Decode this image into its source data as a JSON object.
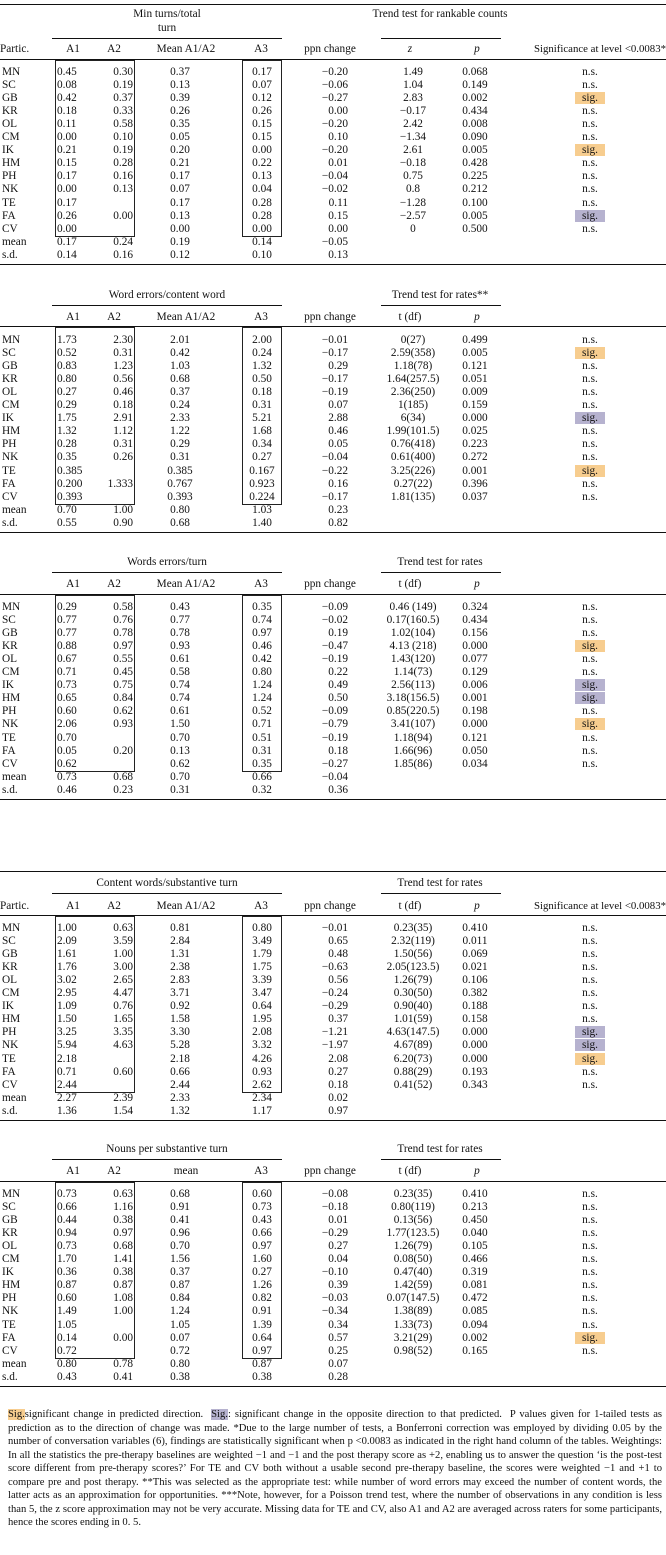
{
  "tables": [
    {
      "group_title_1": "Min turns/total",
      "group_title_2": "turn",
      "trend_title": "Trend test for rankable counts",
      "show_partic": true,
      "show_sig_header": true,
      "col_headers": {
        "partic": "Partic.",
        "a1": "A1",
        "a2": "A2",
        "mean": "Mean A1/A2",
        "a3": "A3",
        "ppn": "ppn change",
        "stat": "z",
        "p": "p",
        "sig": "Significance at level <0.0083*"
      },
      "rows": [
        [
          "MN",
          "0.45",
          "0.30",
          "0.37",
          "0.17",
          "−0.20",
          "1.49",
          "0.068",
          "n.s.",
          ""
        ],
        [
          "SC",
          "0.08",
          "0.19",
          "0.13",
          "0.07",
          "−0.06",
          "1.04",
          "0.149",
          "n.s.",
          ""
        ],
        [
          "GB",
          "0.42",
          "0.37",
          "0.39",
          "0.12",
          "−0.27",
          "2.83",
          "0.002",
          "sig.",
          "o"
        ],
        [
          "KR",
          "0.18",
          "0.33",
          "0.26",
          "0.26",
          "0.00",
          "−0.17",
          "0.434",
          "n.s.",
          ""
        ],
        [
          "OL",
          "0.11",
          "0.58",
          "0.35",
          "0.15",
          "−0.20",
          "2.42",
          "0.008",
          "n.s.",
          ""
        ],
        [
          "CM",
          "0.00",
          "0.10",
          "0.05",
          "0.15",
          "0.10",
          "−1.34",
          "0.090",
          "n.s.",
          ""
        ],
        [
          "IK",
          "0.21",
          "0.19",
          "0.20",
          "0.00",
          "−0.20",
          "2.61",
          "0.005",
          "sig.",
          "o"
        ],
        [
          "HM",
          "0.15",
          "0.28",
          "0.21",
          "0.22",
          "0.01",
          "−0.18",
          "0.428",
          "n.s.",
          ""
        ],
        [
          "PH",
          "0.17",
          "0.16",
          "0.17",
          "0.13",
          "−0.04",
          "0.75",
          "0.225",
          "n.s.",
          ""
        ],
        [
          "NK",
          "0.00",
          "0.13",
          "0.07",
          "0.04",
          "−0.02",
          "0.8",
          "0.212",
          "n.s.",
          ""
        ],
        [
          "TE",
          "0.17",
          "",
          "0.17",
          "0.28",
          "0.11",
          "−1.28",
          "0.100",
          "n.s.",
          ""
        ],
        [
          "FA",
          "0.26",
          "0.00",
          "0.13",
          "0.28",
          "0.15",
          "−2.57",
          "0.005",
          "sig.",
          "p"
        ],
        [
          "CV",
          "0.00",
          "",
          "0.00",
          "0.00",
          "0.00",
          "0",
          "0.500",
          "n.s.",
          ""
        ],
        [
          "mean",
          "0.17",
          "0.24",
          "0.19",
          "0.14",
          "−0.05",
          "",
          "",
          "",
          ""
        ],
        [
          "s.d.",
          "0.14",
          "0.16",
          "0.12",
          "0.10",
          "0.13",
          "",
          "",
          "",
          ""
        ]
      ]
    },
    {
      "group_title_1": "Word errors/content word",
      "group_title_2": "",
      "trend_title": "Trend test for rates**",
      "show_partic": false,
      "show_sig_header": false,
      "col_headers": {
        "partic": "",
        "a1": "A1",
        "a2": "A2",
        "mean": "Mean A1/A2",
        "a3": "A3",
        "ppn": "ppn change",
        "stat": "t (df)",
        "p": "p",
        "sig": ""
      },
      "rows": [
        [
          "MN",
          "1.73",
          "2.30",
          "2.01",
          "2.00",
          "−0.01",
          "0(27)",
          "0.499",
          "n.s.",
          ""
        ],
        [
          "SC",
          "0.52",
          "0.31",
          "0.42",
          "0.24",
          "−0.17",
          "2.59(358)",
          "0.005",
          "sig.",
          "o"
        ],
        [
          "GB",
          "0.83",
          "1.23",
          "1.03",
          "1.32",
          "0.29",
          "1.18(78)",
          "0.121",
          "n.s.",
          ""
        ],
        [
          "KR",
          "0.80",
          "0.56",
          "0.68",
          "0.50",
          "−0.17",
          "1.64(257.5)",
          "0.051",
          "n.s.",
          ""
        ],
        [
          "OL",
          "0.27",
          "0.46",
          "0.37",
          "0.18",
          "−0.19",
          "2.36(250)",
          "0.009",
          "n.s.",
          ""
        ],
        [
          "CM",
          "0.29",
          "0.18",
          "0.24",
          "0.31",
          "0.07",
          "1(185)",
          "0.159",
          "n.s.",
          ""
        ],
        [
          "IK",
          "1.75",
          "2.91",
          "2.33",
          "5.21",
          "2.88",
          "6(34)",
          "0.000",
          "sig.",
          "p"
        ],
        [
          "HM",
          "1.32",
          "1.12",
          "1.22",
          "1.68",
          "0.46",
          "1.99(101.5)",
          "0.025",
          "n.s.",
          ""
        ],
        [
          "PH",
          "0.28",
          "0.31",
          "0.29",
          "0.34",
          "0.05",
          "0.76(418)",
          "0.223",
          "n.s.",
          ""
        ],
        [
          "NK",
          "0.35",
          "0.26",
          "0.31",
          "0.27",
          "−0.04",
          "0.61(400)",
          "0.272",
          "n.s.",
          ""
        ],
        [
          "TE",
          "0.385",
          "",
          "0.385",
          "0.167",
          "−0.22",
          "3.25(226)",
          "0.001",
          "sig.",
          "o"
        ],
        [
          "FA",
          "0.200",
          "1.333",
          "0.767",
          "0.923",
          "0.16",
          "0.27(22)",
          "0.396",
          "n.s.",
          ""
        ],
        [
          "CV",
          "0.393",
          "",
          "0.393",
          "0.224",
          "−0.17",
          "1.81(135)",
          "0.037",
          "n.s.",
          ""
        ],
        [
          "mean",
          "0.70",
          "1.00",
          "0.80",
          "1.03",
          "0.23",
          "",
          "",
          "",
          ""
        ],
        [
          "s.d.",
          "0.55",
          "0.90",
          "0.68",
          "1.40",
          "0.82",
          "",
          "",
          "",
          ""
        ]
      ]
    },
    {
      "group_title_1": "Words errors/turn",
      "group_title_2": "",
      "trend_title": "Trend test for rates",
      "show_partic": false,
      "show_sig_header": false,
      "col_headers": {
        "partic": "",
        "a1": "A1",
        "a2": "A2",
        "mean": "Mean A1/A2",
        "a3": "A3",
        "ppn": "ppn change",
        "stat": "t (df)",
        "p": "p",
        "sig": ""
      },
      "rows": [
        [
          "MN",
          "0.29",
          "0.58",
          "0.43",
          "0.35",
          "−0.09",
          "0.46 (149)",
          "0.324",
          "n.s.",
          ""
        ],
        [
          "SC",
          "0.77",
          "0.76",
          "0.77",
          "0.74",
          "−0.02",
          "0.17(160.5)",
          "0.434",
          "n.s.",
          ""
        ],
        [
          "GB",
          "0.77",
          "0.78",
          "0.78",
          "0.97",
          "0.19",
          "1.02(104)",
          "0.156",
          "n.s.",
          ""
        ],
        [
          "KR",
          "0.88",
          "0.97",
          "0.93",
          "0.46",
          "−0.47",
          "4.13 (218)",
          "0.000",
          "sig.",
          "o"
        ],
        [
          "OL",
          "0.67",
          "0.55",
          "0.61",
          "0.42",
          "−0.19",
          "1.43(120)",
          "0.077",
          "n.s.",
          ""
        ],
        [
          "CM",
          "0.71",
          "0.45",
          "0.58",
          "0.80",
          "0.22",
          "1.14(73)",
          "0.129",
          "n.s.",
          ""
        ],
        [
          "IK",
          "0.73",
          "0.75",
          "0.74",
          "1.24",
          "0.49",
          "2.56(113)",
          "0.006",
          "sig.",
          "p"
        ],
        [
          "HM",
          "0.65",
          "0.84",
          "0.74",
          "1.24",
          "0.50",
          "3.18(156.5)",
          "0.001",
          "sig.",
          "p"
        ],
        [
          "PH",
          "0.60",
          "0.62",
          "0.61",
          "0.52",
          "−0.09",
          "0.85(220.5)",
          "0.198",
          "n.s.",
          ""
        ],
        [
          "NK",
          "2.06",
          "0.93",
          "1.50",
          "0.71",
          "−0.79",
          "3.41(107)",
          "0.000",
          "sig.",
          "o"
        ],
        [
          "TE",
          "0.70",
          "",
          "0.70",
          "0.51",
          "−0.19",
          "1.18(94)",
          "0.121",
          "n.s.",
          ""
        ],
        [
          "FA",
          "0.05",
          "0.20",
          "0.13",
          "0.31",
          "0.18",
          "1.66(96)",
          "0.050",
          "n.s.",
          ""
        ],
        [
          "CV",
          "0.62",
          "",
          "0.62",
          "0.35",
          "−0.27",
          "1.85(86)",
          "0.034",
          "n.s.",
          ""
        ],
        [
          "mean",
          "0.73",
          "0.68",
          "0.70",
          "0.66",
          "−0.04",
          "",
          "",
          "",
          ""
        ],
        [
          "s.d.",
          "0.46",
          "0.23",
          "0.31",
          "0.32",
          "0.36",
          "",
          "",
          "",
          ""
        ]
      ]
    },
    {
      "group_title_1": "Content words/substantive turn",
      "group_title_2": "",
      "trend_title": "Trend test for rates",
      "show_partic": true,
      "show_sig_header": true,
      "col_headers": {
        "partic": "Partic.",
        "a1": "A1",
        "a2": "A2",
        "mean": "Mean A1/A2",
        "a3": "A3",
        "ppn": "ppn change",
        "stat": "t (df)",
        "p": "p",
        "sig": "Significance at level <0.0083*"
      },
      "rows": [
        [
          "MN",
          "1.00",
          "0.63",
          "0.81",
          "0.80",
          "−0.01",
          "0.23(35)",
          "0.410",
          "n.s.",
          ""
        ],
        [
          "SC",
          "2.09",
          "3.59",
          "2.84",
          "3.49",
          "0.65",
          "2.32(119)",
          "0.011",
          "n.s.",
          ""
        ],
        [
          "GB",
          "1.61",
          "1.00",
          "1.31",
          "1.79",
          "0.48",
          "1.50(56)",
          "0.069",
          "n.s.",
          ""
        ],
        [
          "KR",
          "1.76",
          "3.00",
          "2.38",
          "1.75",
          "−0.63",
          "2.05(123.5)",
          "0.021",
          "n.s.",
          ""
        ],
        [
          "OL",
          "3.02",
          "2.65",
          "2.83",
          "3.39",
          "0.56",
          "1.26(79)",
          "0.106",
          "n.s.",
          ""
        ],
        [
          "CM",
          "2.95",
          "4.47",
          "3.71",
          "3.47",
          "−0.24",
          "0.30(50)",
          "0.382",
          "n.s.",
          ""
        ],
        [
          "IK",
          "1.09",
          "0.76",
          "0.92",
          "0.64",
          "−0.29",
          "0.90(40)",
          "0.188",
          "n.s.",
          ""
        ],
        [
          "HM",
          "1.50",
          "1.65",
          "1.58",
          "1.95",
          "0.37",
          "1.01(59)",
          "0.158",
          "n.s.",
          ""
        ],
        [
          "PH",
          "3.25",
          "3.35",
          "3.30",
          "2.08",
          "−1.21",
          "4.63(147.5)",
          "0.000",
          "sig.",
          "p"
        ],
        [
          "NK",
          "5.94",
          "4.63",
          "5.28",
          "3.32",
          "−1.97",
          "4.67(89)",
          "0.000",
          "sig.",
          "p"
        ],
        [
          "TE",
          "2.18",
          "",
          "2.18",
          "4.26",
          "2.08",
          "6.20(73)",
          "0.000",
          "sig.",
          "o"
        ],
        [
          "FA",
          "0.71",
          "0.60",
          "0.66",
          "0.93",
          "0.27",
          "0.88(29)",
          "0.193",
          "n.s.",
          ""
        ],
        [
          "CV",
          "2.44",
          "",
          "2.44",
          "2.62",
          "0.18",
          "0.41(52)",
          "0.343",
          "n.s.",
          ""
        ],
        [
          "mean",
          "2.27",
          "2.39",
          "2.33",
          "2.34",
          "0.02",
          "",
          "",
          "",
          ""
        ],
        [
          "s.d.",
          "1.36",
          "1.54",
          "1.32",
          "1.17",
          "0.97",
          "",
          "",
          "",
          ""
        ]
      ]
    },
    {
      "group_title_1": "Nouns per substantive turn",
      "group_title_2": "",
      "trend_title": "Trend test for rates",
      "show_partic": false,
      "show_sig_header": false,
      "col_headers": {
        "partic": "",
        "a1": "A1",
        "a2": "A2",
        "mean": "mean",
        "a3": "A3",
        "ppn": "ppn change",
        "stat": "t (df)",
        "p": "p",
        "sig": ""
      },
      "rows": [
        [
          "MN",
          "0.73",
          "0.63",
          "0.68",
          "0.60",
          "−0.08",
          "0.23(35)",
          "0.410",
          "n.s.",
          ""
        ],
        [
          "SC",
          "0.66",
          "1.16",
          "0.91",
          "0.73",
          "−0.18",
          "0.80(119)",
          "0.213",
          "n.s.",
          ""
        ],
        [
          "GB",
          "0.44",
          "0.38",
          "0.41",
          "0.43",
          "0.01",
          "0.13(56)",
          "0.450",
          "n.s.",
          ""
        ],
        [
          "KR",
          "0.94",
          "0.97",
          "0.96",
          "0.66",
          "−0.29",
          "1.77(123.5)",
          "0.040",
          "n.s.",
          ""
        ],
        [
          "OL",
          "0.73",
          "0.68",
          "0.70",
          "0.97",
          "0.27",
          "1.26(79)",
          "0.105",
          "n.s.",
          ""
        ],
        [
          "CM",
          "1.70",
          "1.41",
          "1.56",
          "1.60",
          "0.04",
          "0.08(50)",
          "0.466",
          "n.s.",
          ""
        ],
        [
          "IK",
          "0.36",
          "0.38",
          "0.37",
          "0.27",
          "−0.10",
          "0.47(40)",
          "0.319",
          "n.s.",
          ""
        ],
        [
          "HM",
          "0.87",
          "0.87",
          "0.87",
          "1.26",
          "0.39",
          "1.42(59)",
          "0.081",
          "n.s.",
          ""
        ],
        [
          "PH",
          "0.60",
          "1.08",
          "0.84",
          "0.82",
          "−0.03",
          "0.07(147.5)",
          "0.472",
          "n.s.",
          ""
        ],
        [
          "NK",
          "1.49",
          "1.00",
          "1.24",
          "0.91",
          "−0.34",
          "1.38(89)",
          "0.085",
          "n.s.",
          ""
        ],
        [
          "TE",
          "1.05",
          "",
          "1.05",
          "1.39",
          "0.34",
          "1.33(73)",
          "0.094",
          "n.s.",
          ""
        ],
        [
          "FA",
          "0.14",
          "0.00",
          "0.07",
          "0.64",
          "0.57",
          "3.21(29)",
          "0.002",
          "sig.",
          "o"
        ],
        [
          "CV",
          "0.72",
          "",
          "0.72",
          "0.97",
          "0.25",
          "0.98(52)",
          "0.165",
          "n.s.",
          ""
        ],
        [
          "mean",
          "0.80",
          "0.78",
          "0.80",
          "0.87",
          "0.07",
          "",
          "",
          "",
          ""
        ],
        [
          "s.d.",
          "0.43",
          "0.41",
          "0.38",
          "0.38",
          "0.28",
          "",
          "",
          "",
          ""
        ]
      ]
    }
  ],
  "footnote": {
    "swatch_orange": "Sig.",
    "legend_orange": "significant change in predicted direction.",
    "swatch_purple": "Sig.",
    "legend_purple": ": significant change in the opposite direction to that predicted.",
    "body": "P values given for 1-tailed tests as prediction as to the direction of change was made. *Due to the large number of tests, a Bonferroni correction was employed by dividing 0.05 by the number of conversation variables (6), findings are statistically significant when p <0.0083 as indicated in the right hand column of the tables. Weightings: In all the statistics the pre-therapy baselines are weighted −1 and −1 and the post therapy score as +2, enabling us to answer the question ‘is the post-test score different from pre-therapy scores?’ For TE and CV both without a usable second pre-therapy baseline, the scores were weighted −1 and +1 to compare pre and post therapy. **This was selected as the appropriate test: while number of word errors may exceed the number of content words, the latter acts as an approximation for opportunities. ***Note, however, for a Poisson trend test, where the number of observations in any condition is less than 5, the z score approximation may not be very accurate. Missing data for TE and CV, also A1 and A2 are averaged across raters for some participants, hence the scores ending in 0. 5."
  },
  "colors": {
    "sig_predicted": "#f7cd8f",
    "sig_opposite": "#b6b2cf"
  }
}
